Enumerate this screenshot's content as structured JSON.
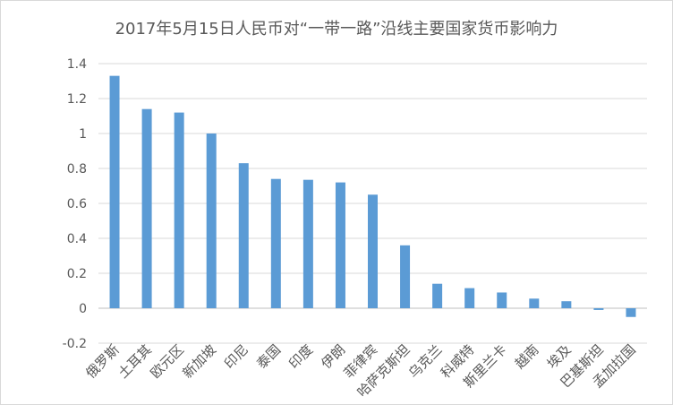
{
  "chart_data": {
    "type": "bar",
    "title": "2017年5月15日人民币对“一带一路”沿线主要国家货币影响力",
    "xlabel": "",
    "ylabel": "",
    "ylim": [
      -0.2,
      1.4
    ],
    "yticks": [
      "-0.2",
      "0",
      "0.2",
      "0.4",
      "0.6",
      "0.8",
      "1",
      "1.2",
      "1.4"
    ],
    "grid": true,
    "legend": "none",
    "color": "#5b9bd5",
    "categories": [
      "俄罗斯",
      "土耳其",
      "欧元区",
      "新加坡",
      "印尼",
      "泰国",
      "印度",
      "伊朗",
      "菲律宾",
      "哈萨克斯坦",
      "乌克兰",
      "科威特",
      "斯里兰卡",
      "越南",
      "埃及",
      "巴基斯坦",
      "孟加拉国"
    ],
    "values": [
      1.33,
      1.14,
      1.12,
      1.0,
      0.83,
      0.74,
      0.735,
      0.72,
      0.65,
      0.36,
      0.14,
      0.115,
      0.09,
      0.055,
      0.04,
      -0.01,
      -0.05
    ]
  }
}
